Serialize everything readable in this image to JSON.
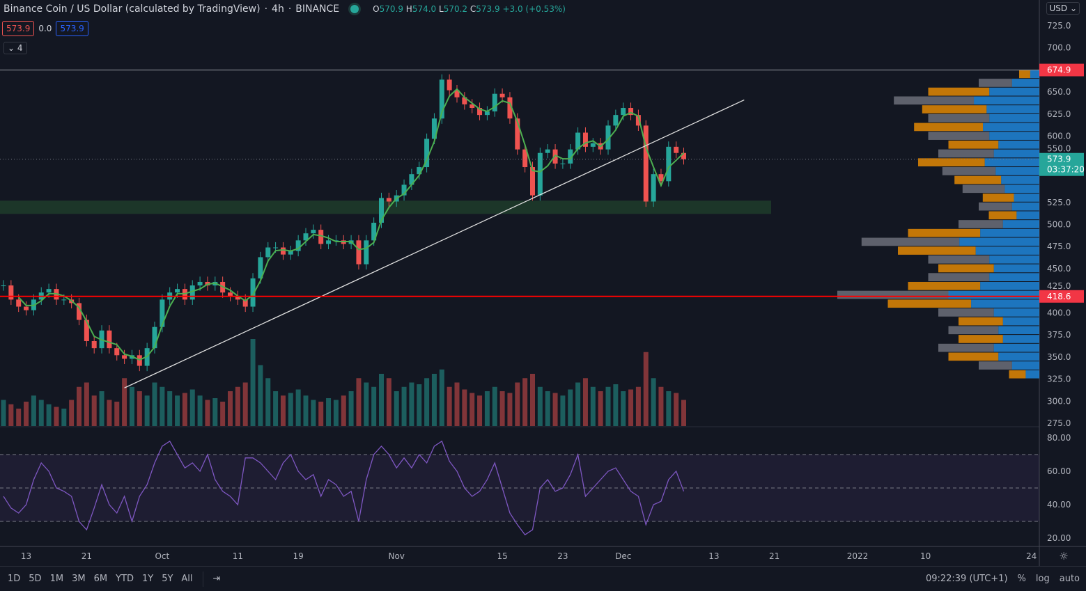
{
  "header": {
    "symbol": "Binance Coin / US Dollar (calculated by TradingView)",
    "interval": "4h",
    "exchange": "BINANCE",
    "ohlc": {
      "o_label": "O",
      "o": "570.9",
      "h_label": "H",
      "h": "574.0",
      "l_label": "L",
      "l": "570.2",
      "c_label": "C",
      "c": "573.9",
      "change": "+3.0 (+0.53%)"
    },
    "bid": "573.9",
    "spread": "0.0",
    "ask": "573.9",
    "collapse_count": "4"
  },
  "currency": "USD",
  "colors": {
    "up": "#26a69a",
    "down": "#ef5350",
    "sma": "#4caf50",
    "rsi": "#7e57c2",
    "support": "#ff0000",
    "zone": "#1e3a2a",
    "profile_up": "#2196f3",
    "profile_down": "#ff9800"
  },
  "bottom": {
    "ranges": [
      "1D",
      "5D",
      "1M",
      "3M",
      "6M",
      "YTD",
      "1Y",
      "5Y",
      "All"
    ],
    "clock": "09:22:39 (UTC+1)",
    "pct": "%",
    "log": "log",
    "auto": "auto"
  },
  "chart_data": [
    {
      "type": "candlestick",
      "title": "Binance Coin / US Dollar",
      "ylim": [
        275,
        750
      ],
      "y_ticks": [
        "725.0",
        "700.0",
        "650.0",
        "625.0",
        "600.0",
        "550.0",
        "525.0",
        "500.0",
        "475.0",
        "450.0",
        "425.0",
        "400.0",
        "375.0",
        "350.0",
        "325.0",
        "300.0",
        "275.0"
      ],
      "x_ticks": [
        {
          "date": "2021-09-13",
          "label": "13"
        },
        {
          "date": "2021-09-21",
          "label": "21"
        },
        {
          "date": "2021-10-01",
          "label": "Oct"
        },
        {
          "date": "2021-10-11",
          "label": "11"
        },
        {
          "date": "2021-10-19",
          "label": "19"
        },
        {
          "date": "2021-11-01",
          "label": "Nov"
        },
        {
          "date": "2021-11-15",
          "label": "15"
        },
        {
          "date": "2021-11-23",
          "label": "23"
        },
        {
          "date": "2021-12-01",
          "label": "Dec"
        },
        {
          "date": "2021-12-13",
          "label": "13"
        },
        {
          "date": "2021-12-21",
          "label": "21"
        },
        {
          "date": "2022-01-01",
          "label": "2022"
        },
        {
          "date": "2022-01-10",
          "label": "10"
        },
        {
          "date": "2022-01-24",
          "label": "24"
        }
      ],
      "first_date": "2021-09-10",
      "close": [
        431,
        415,
        407,
        403,
        415,
        423,
        427,
        415,
        415,
        411,
        392,
        368,
        360,
        380,
        360,
        352,
        348,
        352,
        340,
        360,
        384,
        415,
        423,
        427,
        415,
        431,
        435,
        431,
        435,
        423,
        419,
        415,
        407,
        439,
        463,
        474,
        474,
        466,
        470,
        482,
        490,
        494,
        478,
        482,
        482,
        478,
        482,
        455,
        482,
        502,
        530,
        526,
        533,
        545,
        557,
        565,
        597,
        620,
        664,
        652,
        644,
        636,
        632,
        624,
        628,
        648,
        644,
        620,
        585,
        565,
        533,
        581,
        585,
        569,
        569,
        585,
        604,
        588,
        592,
        585,
        612,
        624,
        632,
        624,
        612,
        526,
        557,
        549,
        588,
        581,
        573.9
      ],
      "volume_relative": [
        30,
        25,
        20,
        28,
        35,
        30,
        25,
        22,
        20,
        30,
        45,
        50,
        35,
        40,
        30,
        28,
        55,
        45,
        40,
        35,
        50,
        45,
        40,
        35,
        38,
        42,
        35,
        30,
        32,
        28,
        40,
        45,
        50,
        100,
        70,
        55,
        40,
        35,
        38,
        42,
        35,
        30,
        28,
        32,
        30,
        35,
        40,
        55,
        50,
        45,
        60,
        55,
        40,
        45,
        50,
        48,
        55,
        60,
        65,
        45,
        50,
        42,
        38,
        35,
        40,
        45,
        40,
        38,
        50,
        55,
        60,
        45,
        40,
        38,
        35,
        42,
        50,
        55,
        45,
        40,
        45,
        48,
        40,
        42,
        45,
        85,
        55,
        45,
        40,
        38,
        30
      ],
      "sma_period_days": 3,
      "last_price": {
        "value": 573.9,
        "label": "573.9",
        "countdown": "03:37:20"
      },
      "high_line": {
        "value": 674.9,
        "label": "674.9"
      },
      "support_line": {
        "value": 418.6,
        "label": "418.6"
      },
      "zone": [
        512,
        527
      ],
      "trendline": [
        [
          "2021-09-26",
          315
        ],
        [
          "2021-12-17",
          641
        ]
      ],
      "volume_profile": {
        "start": 330,
        "step": 10,
        "values": [
          15,
          30,
          45,
          50,
          40,
          45,
          40,
          50,
          75,
          100,
          65,
          55,
          50,
          55,
          70,
          88,
          65,
          40,
          25,
          30,
          28,
          38,
          42,
          48,
          60,
          50,
          45,
          55,
          62,
          55,
          58,
          72,
          55,
          30,
          10
        ]
      }
    },
    {
      "type": "line",
      "title": "RSI",
      "ylim": [
        15,
        83
      ],
      "y_ticks": [
        "80.00",
        "60.00",
        "40.00",
        "20.00"
      ],
      "bands": [
        30,
        50,
        70
      ],
      "first_date": "2021-09-10",
      "values": [
        45,
        38,
        35,
        40,
        55,
        65,
        60,
        50,
        48,
        45,
        30,
        25,
        38,
        52,
        40,
        35,
        45,
        30,
        45,
        52,
        65,
        75,
        78,
        70,
        62,
        65,
        60,
        70,
        55,
        48,
        45,
        40,
        68,
        68,
        65,
        60,
        55,
        65,
        70,
        60,
        55,
        58,
        45,
        55,
        52,
        45,
        48,
        30,
        55,
        70,
        75,
        70,
        62,
        68,
        62,
        70,
        65,
        75,
        78,
        66,
        60,
        50,
        45,
        48,
        55,
        65,
        50,
        35,
        28,
        22,
        25,
        50,
        55,
        48,
        50,
        58,
        70,
        45,
        50,
        55,
        60,
        62,
        55,
        48,
        45,
        28,
        40,
        42,
        55,
        60,
        48
      ]
    }
  ]
}
